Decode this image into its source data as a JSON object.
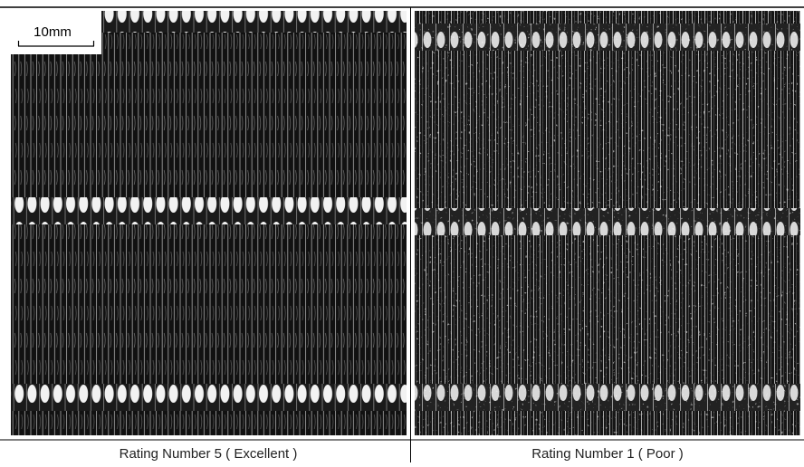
{
  "scale_bar": {
    "label": "10mm"
  },
  "panels": [
    {
      "caption": "Rating Number 5 ( Excellent )"
    },
    {
      "caption": "Rating Number 1 ( Poor )"
    }
  ]
}
